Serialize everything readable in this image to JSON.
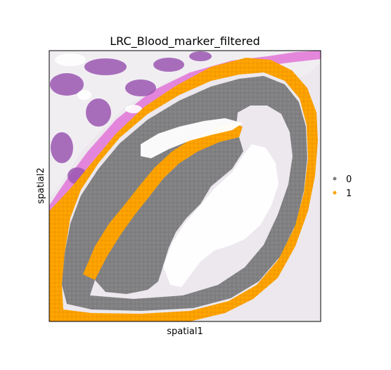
{
  "chart_data": {
    "type": "scatter",
    "title": "LRC_Blood_marker_filtered",
    "xlabel": "spatial1",
    "ylabel": "spatial2",
    "background": "H&E tissue image",
    "grid": false,
    "legend_position": "right",
    "series": [
      {
        "name": "0",
        "color": "#808080"
      },
      {
        "name": "1",
        "color": "#FFA500"
      }
    ],
    "categories": [
      "0",
      "1"
    ]
  },
  "colors": {
    "tissue_pink": "#e07ad8",
    "tissue_purple": "#9a55b0",
    "background_tissue": "#ebe6ee",
    "lumen": "#ffffff"
  }
}
